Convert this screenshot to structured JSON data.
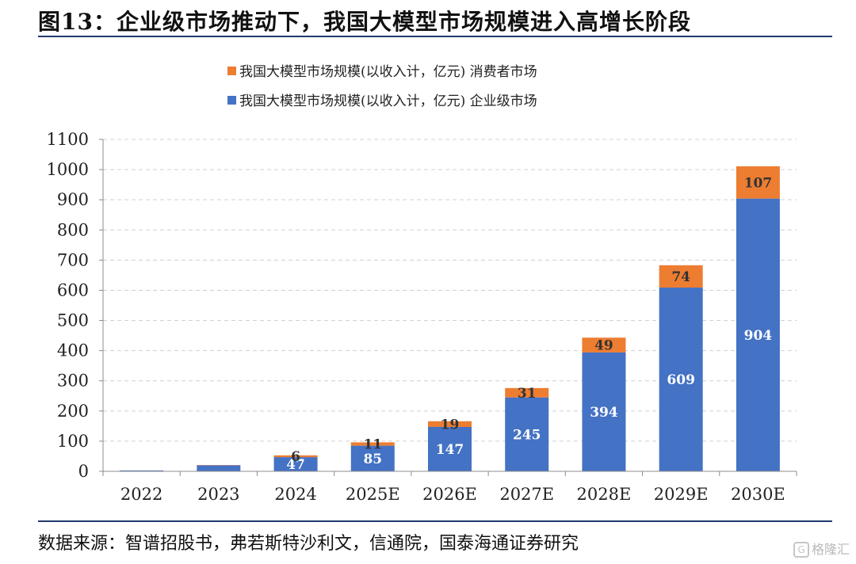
{
  "header": {
    "title": "图13：企业级市场推动下，我国大模型市场规模进入高增长阶段"
  },
  "footer": {
    "source": "数据来源：智谱招股书，弗若斯特沙利文，信通院，国泰海通证券研究"
  },
  "watermark": {
    "text": "格隆汇",
    "icon": "G"
  },
  "colors": {
    "enterprise": "#4472c4",
    "consumer": "#ed7d31",
    "grid": "#d0d0d0",
    "axis": "#8c8c8c",
    "rule": "#1f3a70"
  },
  "chart_data": {
    "type": "bar",
    "stacked": true,
    "title": "",
    "xlabel": "",
    "ylabel": "",
    "ylim": [
      0,
      1100
    ],
    "yticks": [
      0,
      100,
      200,
      300,
      400,
      500,
      600,
      700,
      800,
      900,
      1000,
      1100
    ],
    "grid": true,
    "legend_position": "top",
    "categories": [
      "2022",
      "2023",
      "2024",
      "2025E",
      "2026E",
      "2027E",
      "2028E",
      "2029E",
      "2030E"
    ],
    "series": [
      {
        "name": "我国大模型市场规模(以收入计，亿元) 企业级市场",
        "color": "#4472c4",
        "values": [
          3,
          20,
          47,
          85,
          147,
          245,
          394,
          609,
          904
        ],
        "labels": [
          "",
          "",
          "47",
          "85",
          "147",
          "245",
          "394",
          "609",
          "904"
        ]
      },
      {
        "name": "我国大模型市场规模(以收入计，亿元) 消费者市场",
        "color": "#ed7d31",
        "values": [
          0,
          1,
          6,
          11,
          19,
          31,
          49,
          74,
          107
        ],
        "labels": [
          "",
          "",
          "6",
          "11",
          "19",
          "31",
          "49",
          "74",
          "107"
        ]
      }
    ]
  }
}
